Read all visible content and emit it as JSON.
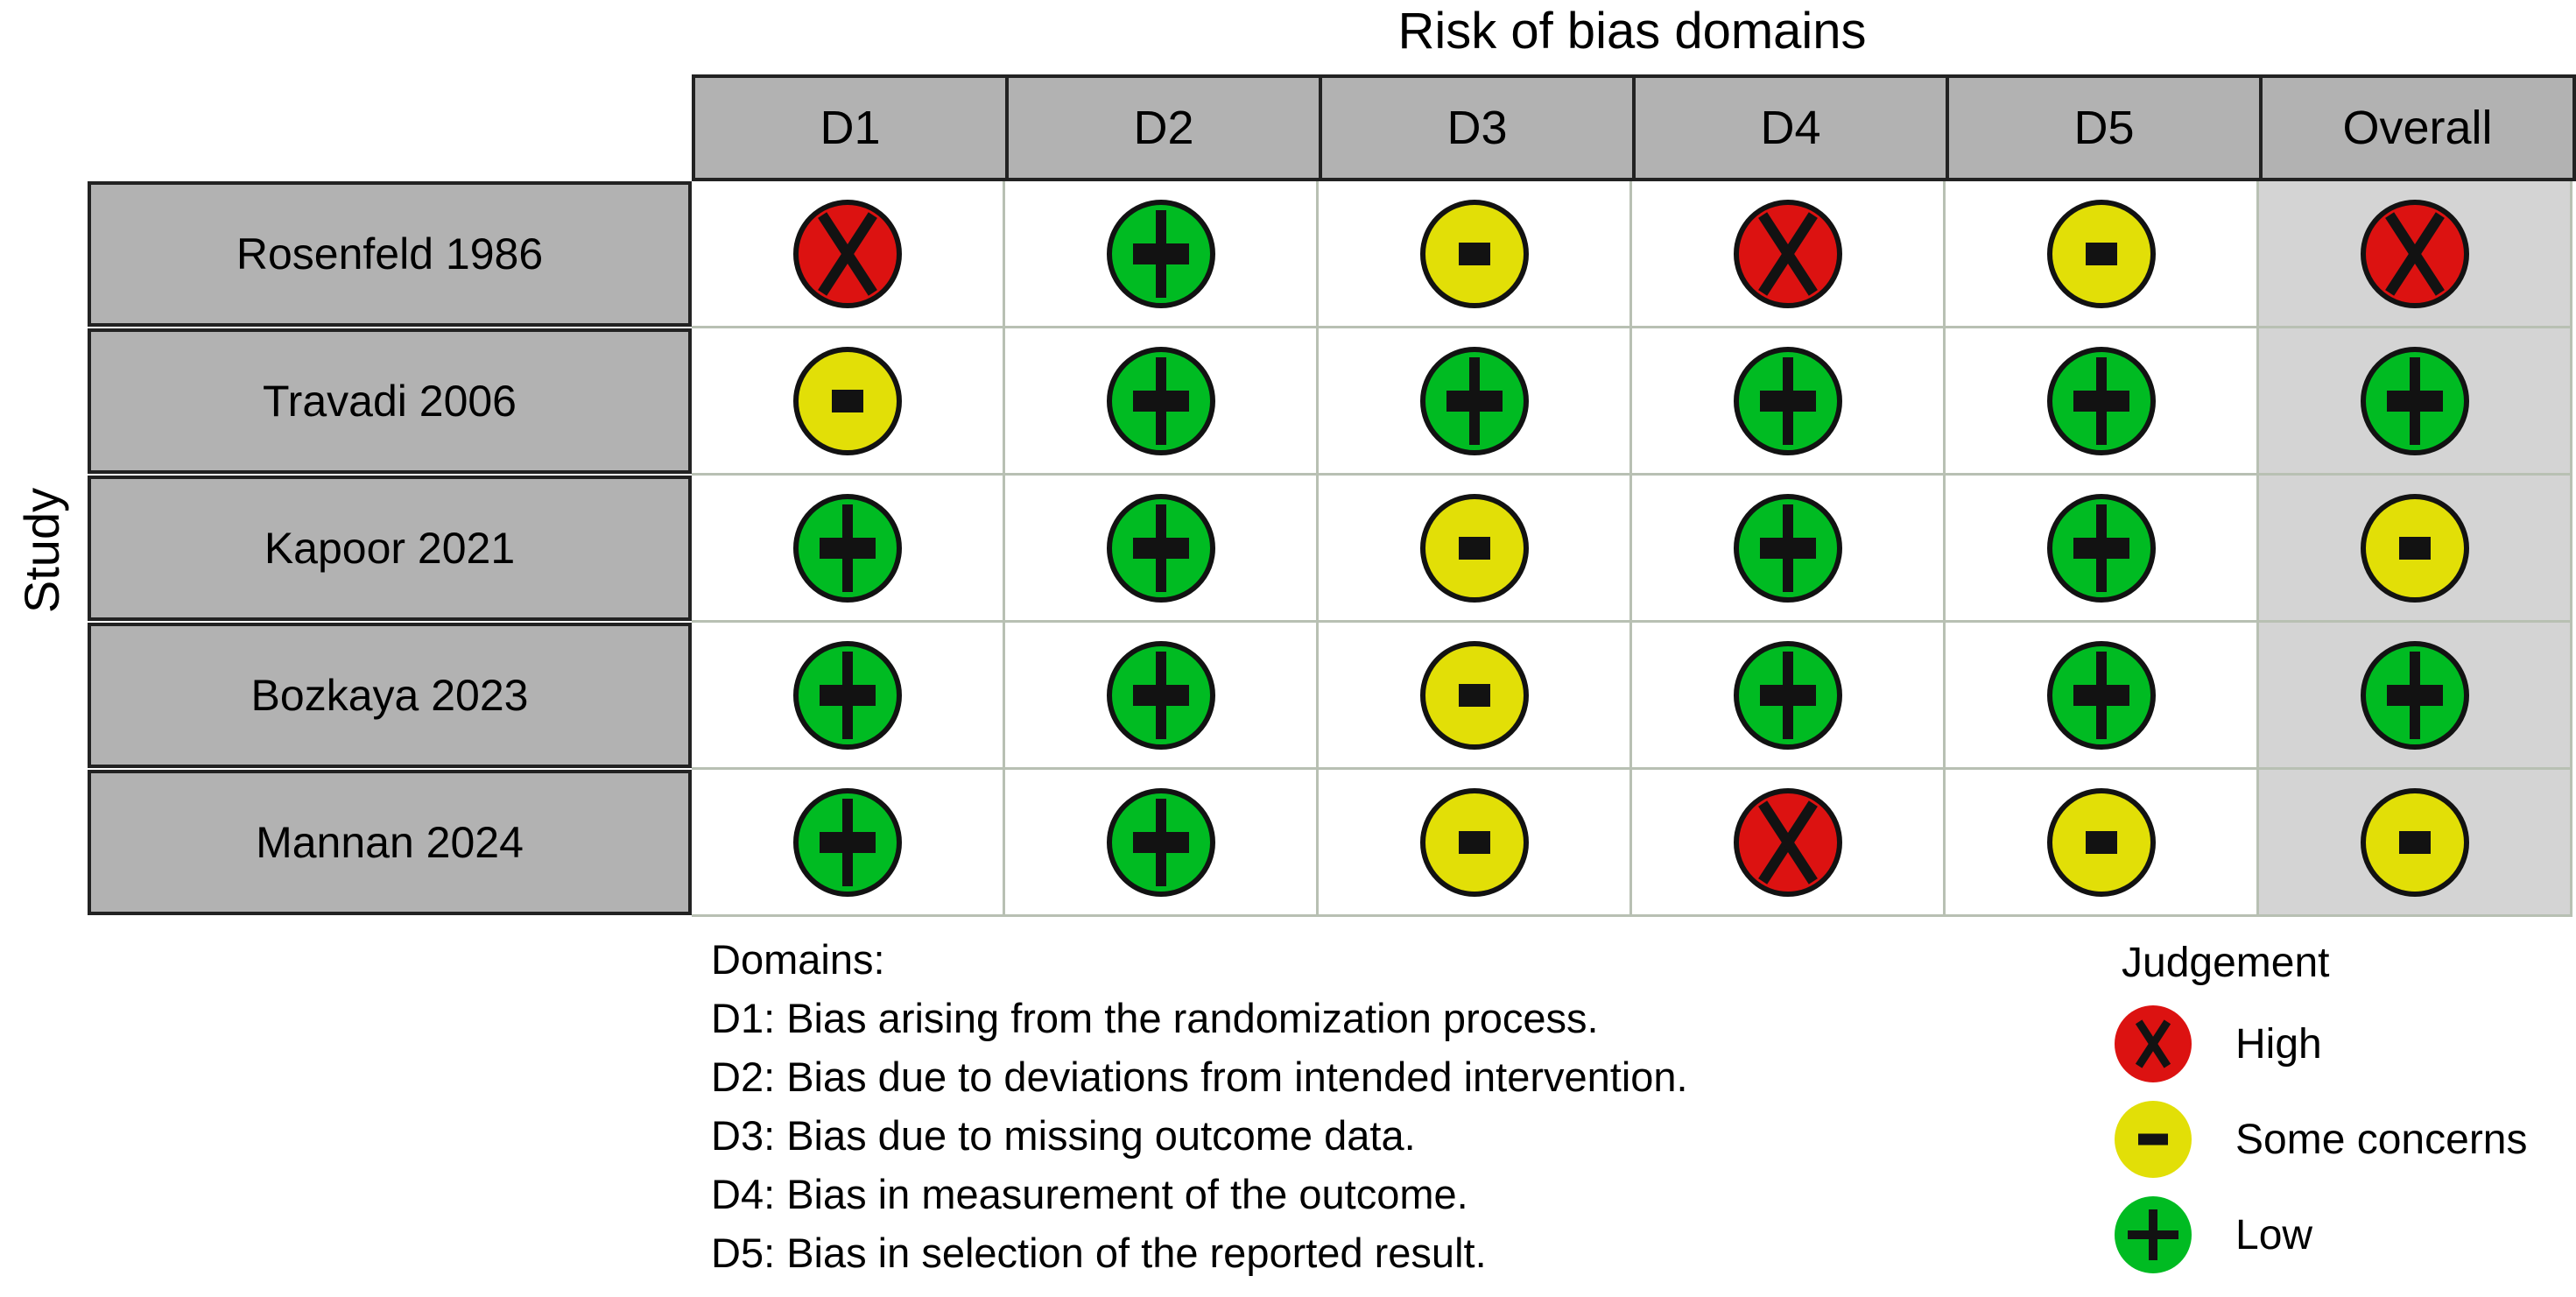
{
  "chart_data": {
    "type": "table",
    "title": "Risk of bias domains",
    "row_axis_label": "Study",
    "columns": [
      "D1",
      "D2",
      "D3",
      "D4",
      "D5",
      "Overall"
    ],
    "rows": [
      {
        "study": "Rosenfeld 1986",
        "judgements": [
          "high",
          "low",
          "some",
          "high",
          "some",
          "high"
        ]
      },
      {
        "study": "Travadi 2006",
        "judgements": [
          "some",
          "low",
          "low",
          "low",
          "low",
          "low"
        ]
      },
      {
        "study": "Kapoor 2021",
        "judgements": [
          "low",
          "low",
          "some",
          "low",
          "low",
          "some"
        ]
      },
      {
        "study": "Bozkaya 2023",
        "judgements": [
          "low",
          "low",
          "some",
          "low",
          "low",
          "low"
        ]
      },
      {
        "study": "Mannan 2024",
        "judgements": [
          "low",
          "low",
          "some",
          "high",
          "some",
          "some"
        ]
      }
    ],
    "judgement_symbols": {
      "high": "X",
      "some": "-",
      "low": "+"
    },
    "judgement_colors": {
      "high": "#dc1211",
      "some": "#e2df07",
      "low": "#00bb22"
    },
    "legend": {
      "title": "Judgement",
      "items": [
        {
          "code": "high",
          "symbol": "X",
          "label": "High"
        },
        {
          "code": "some",
          "symbol": "-",
          "label": "Some concerns"
        },
        {
          "code": "low",
          "symbol": "+",
          "label": "Low"
        }
      ]
    },
    "footnote": {
      "heading": "Domains:",
      "lines": [
        "D1: Bias arising from the randomization process.",
        "D2: Bias due to deviations from intended intervention.",
        "D3: Bias due to missing outcome data.",
        "D4: Bias in measurement of the outcome.",
        "D5: Bias in selection of the reported result."
      ]
    },
    "layout": {
      "header_bg": "#b2b2b2",
      "study_bg": "#b2b2b2",
      "overall_column_bg": "#d4d4d4",
      "gridline_color": "#b8c0b3",
      "legend_position": "bottom-right"
    }
  }
}
